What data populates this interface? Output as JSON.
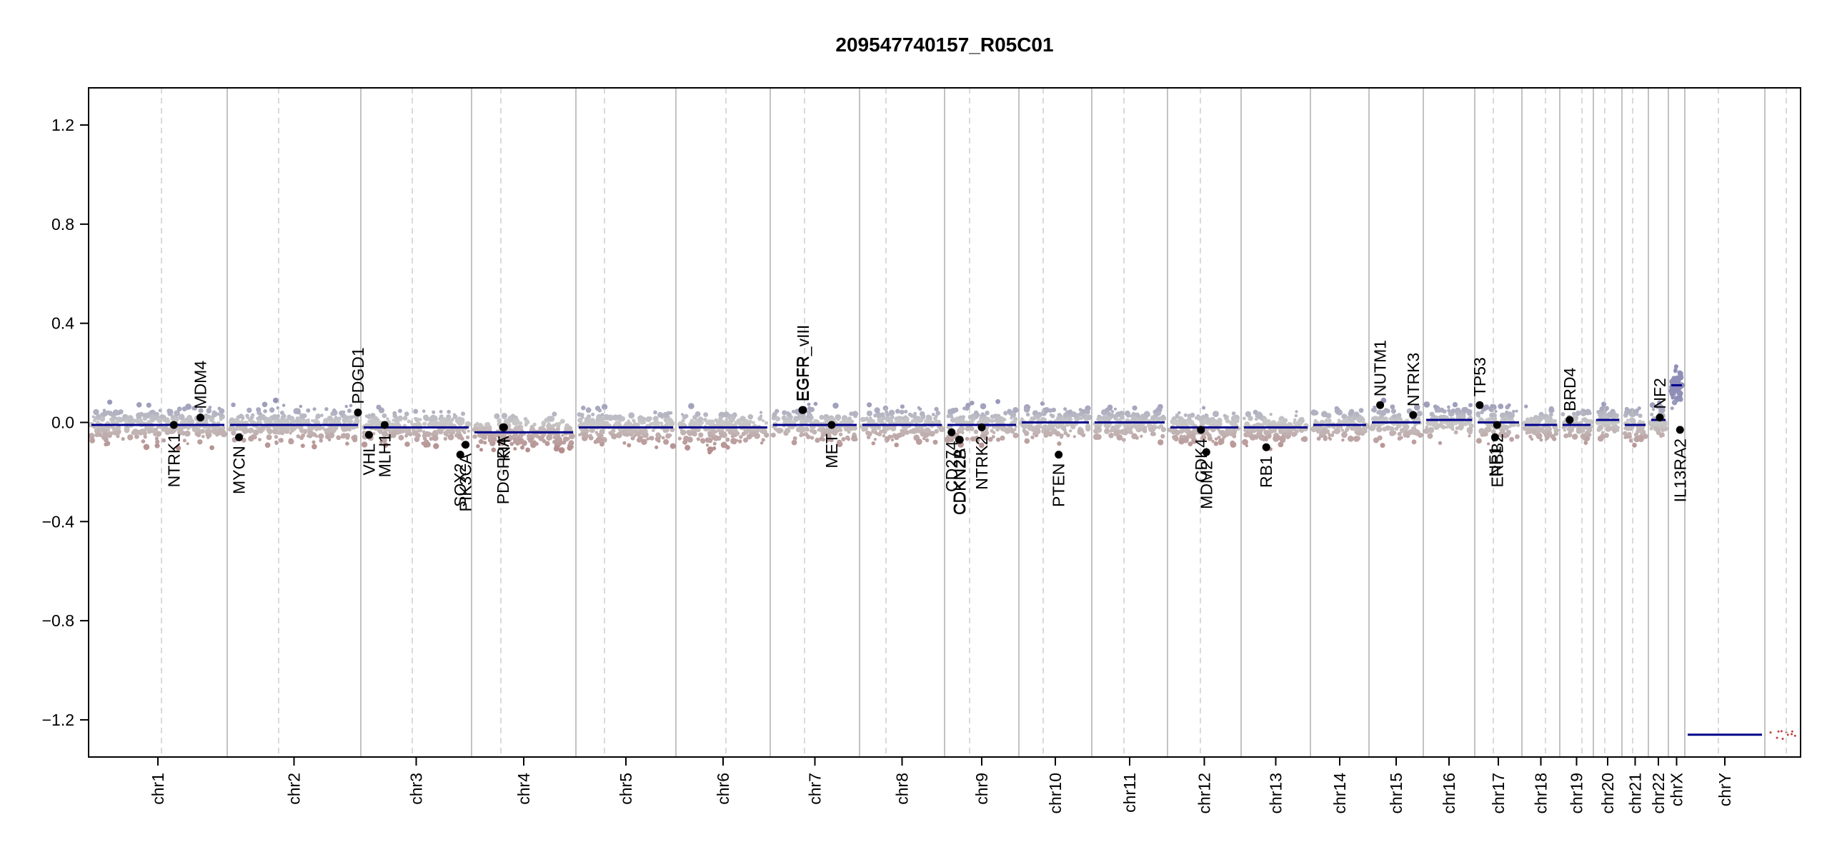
{
  "chart_data": {
    "type": "scatter",
    "title": "209547740157_R05C01",
    "ylim": [
      -1.35,
      1.35
    ],
    "y_ticks": [
      -1.2,
      -0.8,
      -0.4,
      0.0,
      0.4,
      0.8,
      1.2
    ],
    "y_tick_labels": [
      "−1.2",
      "−0.8",
      "−0.4",
      "0.0",
      "0.4",
      "0.8",
      "1.2"
    ],
    "grid": false,
    "colors": {
      "gain": "#8e8eb8",
      "neutral": "#c8c8c8",
      "loss": "#b48888",
      "segment": "#00008b",
      "gene_point": "#000000",
      "boundary": "#9a9a9a",
      "centromere": "#c0c0c0"
    },
    "chromosomes": [
      {
        "name": "chr1",
        "segments": [
          {
            "from": 0.0,
            "to": 1.0,
            "value": -0.01
          }
        ]
      },
      {
        "name": "chr2",
        "segments": [
          {
            "from": 0.0,
            "to": 1.0,
            "value": -0.01
          }
        ]
      },
      {
        "name": "chr3",
        "segments": [
          {
            "from": 0.0,
            "to": 1.0,
            "value": -0.02
          }
        ]
      },
      {
        "name": "chr4",
        "segments": [
          {
            "from": 0.0,
            "to": 1.0,
            "value": -0.04
          }
        ]
      },
      {
        "name": "chr5",
        "segments": [
          {
            "from": 0.0,
            "to": 1.0,
            "value": -0.02
          }
        ]
      },
      {
        "name": "chr6",
        "segments": [
          {
            "from": 0.0,
            "to": 1.0,
            "value": -0.02
          }
        ]
      },
      {
        "name": "chr7",
        "segments": [
          {
            "from": 0.0,
            "to": 1.0,
            "value": -0.01
          }
        ]
      },
      {
        "name": "chr8",
        "segments": [
          {
            "from": 0.0,
            "to": 1.0,
            "value": -0.01
          }
        ]
      },
      {
        "name": "chr9",
        "segments": [
          {
            "from": 0.0,
            "to": 1.0,
            "value": -0.01
          }
        ]
      },
      {
        "name": "chr10",
        "segments": [
          {
            "from": 0.0,
            "to": 1.0,
            "value": 0.0
          }
        ]
      },
      {
        "name": "chr11",
        "segments": [
          {
            "from": 0.0,
            "to": 1.0,
            "value": 0.0
          }
        ]
      },
      {
        "name": "chr12",
        "segments": [
          {
            "from": 0.0,
            "to": 1.0,
            "value": -0.02
          }
        ]
      },
      {
        "name": "chr13",
        "segments": [
          {
            "from": 0.0,
            "to": 1.0,
            "value": -0.02
          }
        ]
      },
      {
        "name": "chr14",
        "segments": [
          {
            "from": 0.0,
            "to": 1.0,
            "value": -0.01
          }
        ]
      },
      {
        "name": "chr15",
        "segments": [
          {
            "from": 0.0,
            "to": 1.0,
            "value": 0.0
          }
        ]
      },
      {
        "name": "chr16",
        "segments": [
          {
            "from": 0.0,
            "to": 1.0,
            "value": 0.01
          }
        ]
      },
      {
        "name": "chr17",
        "segments": [
          {
            "from": 0.0,
            "to": 1.0,
            "value": 0.0
          }
        ]
      },
      {
        "name": "chr18",
        "segments": [
          {
            "from": 0.0,
            "to": 1.0,
            "value": -0.01
          }
        ]
      },
      {
        "name": "chr19",
        "segments": [
          {
            "from": 0.0,
            "to": 1.0,
            "value": -0.01
          }
        ]
      },
      {
        "name": "chr20",
        "segments": [
          {
            "from": 0.0,
            "to": 1.0,
            "value": 0.01
          }
        ]
      },
      {
        "name": "chr21",
        "segments": [
          {
            "from": 0.0,
            "to": 1.0,
            "value": -0.01
          }
        ]
      },
      {
        "name": "chr22",
        "segments": [
          {
            "from": 0.0,
            "to": 1.0,
            "value": 0.01
          }
        ]
      },
      {
        "name": "chrX",
        "segments": [
          {
            "from": 0.0,
            "to": 1.0,
            "value": 0.15
          }
        ]
      },
      {
        "name": "chrY",
        "segments": [
          {
            "from": 0.0,
            "to": 1.0,
            "value": -1.26
          }
        ]
      }
    ],
    "genes": [
      {
        "name": "NTRK1",
        "chr": "chr1",
        "pos": 0.62,
        "value": -0.01,
        "side": "below"
      },
      {
        "name": "MDM4",
        "chr": "chr1",
        "pos": 0.82,
        "value": 0.02,
        "side": "above"
      },
      {
        "name": "MYCN",
        "chr": "chr2",
        "pos": 0.07,
        "value": -0.06,
        "side": "below"
      },
      {
        "name": "PDGD1",
        "chr": "chr2",
        "pos": 1.0,
        "value": 0.04,
        "side": "above"
      },
      {
        "name": "VHL",
        "chr": "chr3",
        "pos": 0.05,
        "value": -0.05,
        "side": "below"
      },
      {
        "name": "MLH1",
        "chr": "chr3",
        "pos": 0.2,
        "value": -0.01,
        "side": "below"
      },
      {
        "name": "SOX2",
        "chr": "chr3",
        "pos": 0.92,
        "value": -0.13,
        "side": "below"
      },
      {
        "name": "PIK3CA",
        "chr": "chr3",
        "pos": 0.97,
        "value": -0.09,
        "side": "below"
      },
      {
        "name": "PDGFRA",
        "chr": "chr4",
        "pos": 0.29,
        "value": -0.02,
        "side": "below"
      },
      {
        "name": "KIT",
        "chr": "chr4",
        "pos": 0.3,
        "value": -0.02,
        "side": "below"
      },
      {
        "name": "EGFR",
        "chr": "chr7",
        "pos": 0.35,
        "value": 0.05,
        "side": "above"
      },
      {
        "name": "EGFR_vIII",
        "chr": "chr7",
        "pos": 0.36,
        "value": 0.05,
        "side": "above"
      },
      {
        "name": "MET",
        "chr": "chr7",
        "pos": 0.7,
        "value": -0.01,
        "side": "below"
      },
      {
        "name": "CD274",
        "chr": "chr9",
        "pos": 0.06,
        "value": -0.04,
        "side": "below"
      },
      {
        "name": "CDKN2A",
        "chr": "chr9",
        "pos": 0.17,
        "value": -0.07,
        "side": "below"
      },
      {
        "name": "CDKN2B",
        "chr": "chr9",
        "pos": 0.18,
        "value": -0.07,
        "side": "below"
      },
      {
        "name": "NTRK2",
        "chr": "chr9",
        "pos": 0.5,
        "value": -0.02,
        "side": "below"
      },
      {
        "name": "PTEN",
        "chr": "chr10",
        "pos": 0.55,
        "value": -0.13,
        "side": "below"
      },
      {
        "name": "CDK4",
        "chr": "chr12",
        "pos": 0.45,
        "value": -0.03,
        "side": "below"
      },
      {
        "name": "MDM2",
        "chr": "chr12",
        "pos": 0.53,
        "value": -0.12,
        "side": "below"
      },
      {
        "name": "RB1",
        "chr": "chr13",
        "pos": 0.35,
        "value": -0.1,
        "side": "below"
      },
      {
        "name": "NUTM1",
        "chr": "chr15",
        "pos": 0.17,
        "value": 0.07,
        "side": "above"
      },
      {
        "name": "NTRK3",
        "chr": "chr15",
        "pos": 0.85,
        "value": 0.03,
        "side": "above"
      },
      {
        "name": "TP53",
        "chr": "chr17",
        "pos": 0.05,
        "value": 0.07,
        "side": "above"
      },
      {
        "name": "NF1",
        "chr": "chr17",
        "pos": 0.42,
        "value": -0.06,
        "side": "below"
      },
      {
        "name": "ERBB2",
        "chr": "chr17",
        "pos": 0.47,
        "value": -0.01,
        "side": "below"
      },
      {
        "name": "BRD4",
        "chr": "chr19",
        "pos": 0.25,
        "value": 0.01,
        "side": "above"
      },
      {
        "name": "NF2",
        "chr": "chr22",
        "pos": 0.6,
        "value": 0.02,
        "side": "above"
      },
      {
        "name": "IL13RA2",
        "chr": "chrX",
        "pos": 0.82,
        "value": -0.03,
        "side": "below"
      }
    ]
  }
}
